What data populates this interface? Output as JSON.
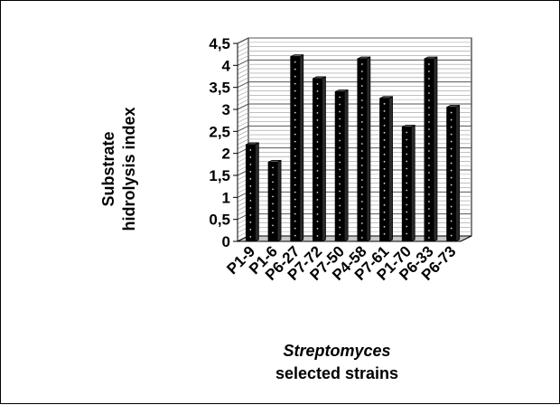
{
  "chart_data": {
    "type": "bar",
    "categories": [
      "P1-9",
      "P1-6",
      "P6-27",
      "P7-72",
      "P7-50",
      "P4-58",
      "P7-61",
      "P1-70",
      "P6-33",
      "P6-73"
    ],
    "values": [
      2.2,
      1.8,
      4.2,
      3.7,
      3.4,
      4.15,
      3.25,
      2.6,
      4.15,
      3.05
    ],
    "yticks": [
      "0",
      "0,5",
      "1",
      "1,5",
      "2",
      "2,5",
      "3",
      "3,5",
      "4",
      "4,5"
    ],
    "ylim": [
      0,
      4.5
    ],
    "ylabel_line1": "Substrate",
    "ylabel_line2": "hidrolysis index",
    "xlabel_line1": "Streptomyces",
    "xlabel_line2": "selected strains",
    "grid": true,
    "bar_color": "#000000"
  }
}
